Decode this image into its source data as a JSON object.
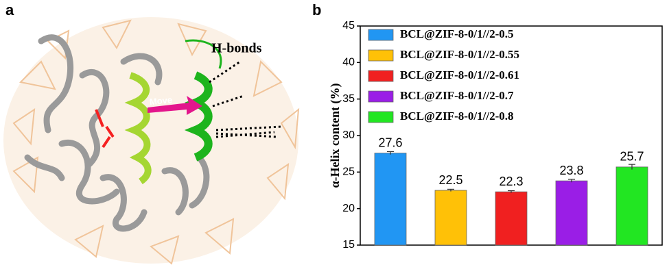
{
  "panel_a": {
    "label": "a",
    "annotations": {
      "bonds": "H-bonds",
      "move": "Move"
    }
  },
  "chart_data": {
    "type": "bar",
    "panel_label": "b",
    "y_label": "α-Helix content (%)",
    "ylim": [
      15,
      45
    ],
    "yticks": [
      15,
      20,
      25,
      30,
      35,
      40,
      45
    ],
    "legend": "upper-left",
    "series": [
      {
        "name": "BCL@ZIF-8-0/1//2-0.5",
        "color": "#2196f3",
        "values": [
          27.6
        ],
        "errors": [
          0.2
        ]
      },
      {
        "name": "BCL@ZIF-8-0/1//2-0.55",
        "color": "#ffc107",
        "values": [
          22.5
        ],
        "errors": [
          0.15
        ]
      },
      {
        "name": "BCL@ZIF-8-0/1//2-0.61",
        "color": "#f02020",
        "values": [
          22.3
        ],
        "errors": [
          0.15
        ]
      },
      {
        "name": "BCL@ZIF-8-0/1//2-0.7",
        "color": "#9a1ee6",
        "values": [
          23.8
        ],
        "errors": [
          0.2
        ]
      },
      {
        "name": "BCL@ZIF-8-0/1//2-0.8",
        "color": "#22e622",
        "values": [
          25.7
        ],
        "errors": [
          0.35
        ]
      }
    ]
  }
}
